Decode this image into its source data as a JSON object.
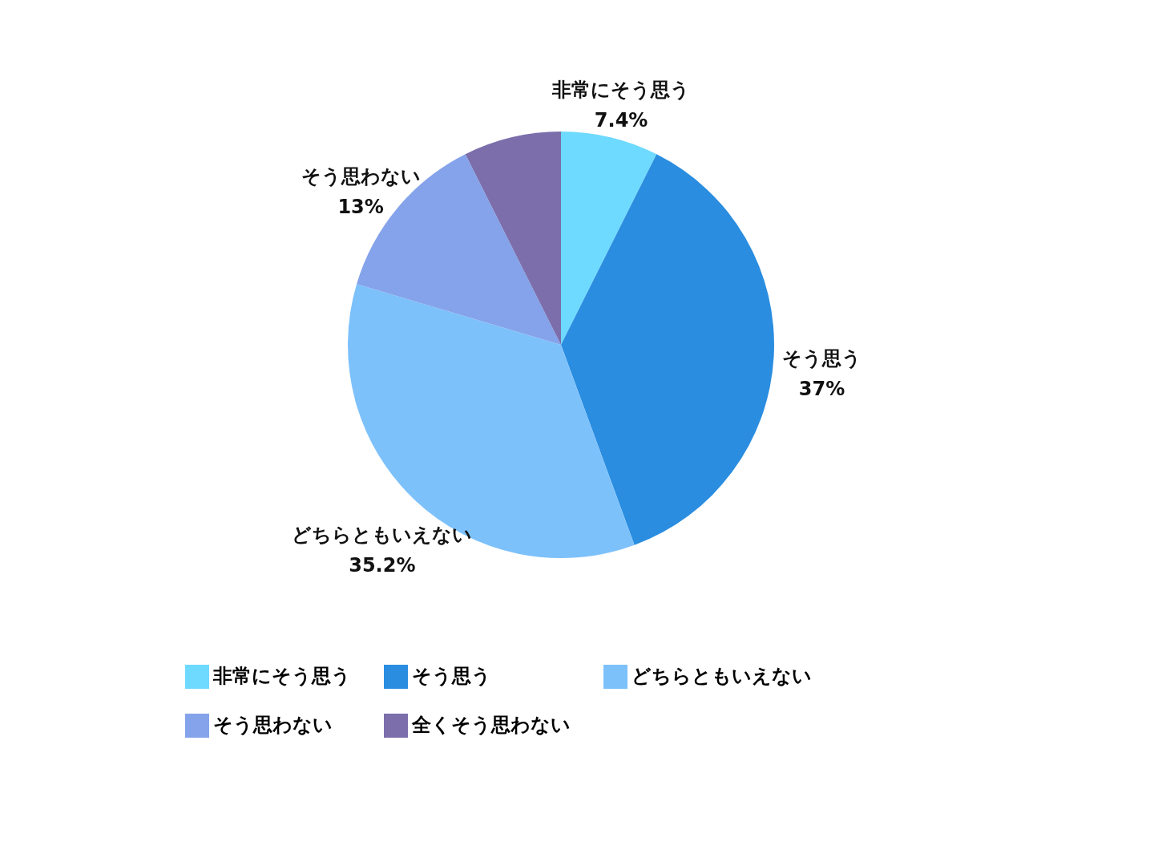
{
  "chart_data": {
    "type": "pie",
    "categories": [
      "非常にそう思う",
      "そう思う",
      "どちらともいえない",
      "そう思わない",
      "全くそう思わない"
    ],
    "values": [
      7.4,
      37,
      35.2,
      13,
      7.4
    ],
    "colors": [
      "#6edaff",
      "#2a8de0",
      "#7dc1fb",
      "#84a3ea",
      "#7b6eab"
    ],
    "value_labels": [
      "7.4%",
      "37%",
      "35.2%",
      "13%",
      null
    ],
    "legend": "bottom"
  }
}
